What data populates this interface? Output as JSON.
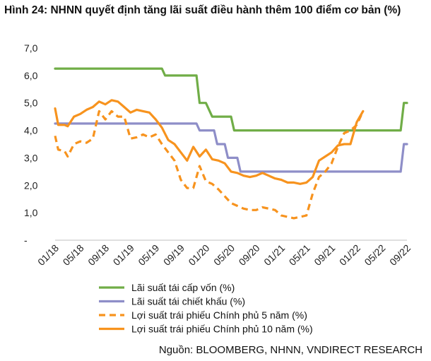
{
  "title": "Hình 24: NHNN quyết định tăng lãi suất điều hành thêm 100 điểm cơ bản (%)",
  "source": "Nguồn: BLOOMBERG, NHNN, VNDIRECT RESEARCH",
  "chart_data": {
    "type": "line",
    "title": "Hình 24: NHNN quyết định tăng lãi suất điều hành thêm 100 điểm cơ bản (%)",
    "xlabel": "",
    "ylabel": "",
    "ylim": [
      0,
      7
    ],
    "yticks": [
      0,
      1,
      2,
      3,
      4,
      5,
      6,
      7
    ],
    "ytick_labels": [
      "-",
      "1,0",
      "2,0",
      "3,0",
      "4,0",
      "5,0",
      "6,0",
      "7,0"
    ],
    "x_range": [
      0,
      56
    ],
    "xtick_labels": [
      "01/18",
      "05/18",
      "09/18",
      "01/19",
      "05/19",
      "09/19",
      "01/20",
      "05/20",
      "09/20",
      "01/21",
      "05/21",
      "09/21",
      "01/22",
      "05/22",
      "09/22"
    ],
    "xtick_positions": [
      0,
      4,
      8,
      12,
      16,
      20,
      24,
      28,
      32,
      36,
      40,
      44,
      48,
      52,
      56
    ],
    "grid": false,
    "legend_position": "bottom",
    "series": [
      {
        "name": "Lãi suất tái cấp vốn (%)",
        "color": "#70ad47",
        "style": "solid",
        "points": [
          [
            0,
            6.25
          ],
          [
            17,
            6.25
          ],
          [
            17.5,
            6.0
          ],
          [
            21,
            6.0
          ],
          [
            22.5,
            6.0
          ],
          [
            23,
            5.0
          ],
          [
            24,
            5.0
          ],
          [
            25,
            4.5
          ],
          [
            28,
            4.5
          ],
          [
            28.5,
            4.0
          ],
          [
            55,
            4.0
          ],
          [
            55.5,
            5.0
          ],
          [
            56,
            5.0
          ]
        ]
      },
      {
        "name": "Lãi suất tái chiết khấu (%)",
        "color": "#8e8ec8",
        "style": "solid",
        "points": [
          [
            0,
            4.25
          ],
          [
            22.5,
            4.25
          ],
          [
            23,
            4.0
          ],
          [
            25.3,
            4.0
          ],
          [
            25.8,
            3.5
          ],
          [
            27,
            3.5
          ],
          [
            27.5,
            3.0
          ],
          [
            29,
            3.0
          ],
          [
            29.5,
            2.5
          ],
          [
            55,
            2.5
          ],
          [
            55.5,
            3.5
          ],
          [
            56,
            3.5
          ]
        ]
      },
      {
        "name": "Lợi suất trái phiếu Chính phủ 5 năm (%)",
        "color": "#f7931e",
        "style": "dashed",
        "points": [
          [
            0,
            3.8
          ],
          [
            0.5,
            3.3
          ],
          [
            1.5,
            3.25
          ],
          [
            2,
            3.05
          ],
          [
            3,
            3.5
          ],
          [
            4,
            3.6
          ],
          [
            5,
            3.55
          ],
          [
            6,
            3.7
          ],
          [
            7,
            4.7
          ],
          [
            8,
            4.4
          ],
          [
            9,
            4.7
          ],
          [
            10,
            4.5
          ],
          [
            11,
            4.5
          ],
          [
            12,
            3.7
          ],
          [
            13,
            3.75
          ],
          [
            14,
            3.85
          ],
          [
            15,
            3.75
          ],
          [
            16,
            3.85
          ],
          [
            17,
            3.5
          ],
          [
            18,
            3.2
          ],
          [
            19,
            2.9
          ],
          [
            20,
            2.2
          ],
          [
            21,
            1.9
          ],
          [
            22,
            1.9
          ],
          [
            23,
            2.7
          ],
          [
            24,
            2.15
          ],
          [
            25,
            2.05
          ],
          [
            26,
            1.85
          ],
          [
            27,
            1.6
          ],
          [
            28,
            1.35
          ],
          [
            29,
            1.25
          ],
          [
            30,
            1.15
          ],
          [
            31,
            1.1
          ],
          [
            32,
            1.1
          ],
          [
            33,
            1.2
          ],
          [
            34,
            1.15
          ],
          [
            35,
            1.1
          ],
          [
            36,
            0.9
          ],
          [
            37,
            0.85
          ],
          [
            38,
            0.8
          ],
          [
            39,
            0.85
          ],
          [
            40,
            0.9
          ],
          [
            41,
            1.7
          ],
          [
            42,
            2.3
          ],
          [
            43,
            2.5
          ],
          [
            44,
            2.8
          ],
          [
            45,
            3.4
          ],
          [
            46,
            3.9
          ],
          [
            47,
            4.0
          ],
          [
            48,
            4.2
          ],
          [
            49,
            4.7
          ]
        ]
      },
      {
        "name": "Lợi suất trái phiếu Chính phủ 10 năm (%)",
        "color": "#f7931e",
        "style": "solid",
        "points": [
          [
            0,
            4.8
          ],
          [
            0.5,
            4.2
          ],
          [
            1.5,
            4.2
          ],
          [
            2,
            4.15
          ],
          [
            3,
            4.5
          ],
          [
            4,
            4.6
          ],
          [
            5,
            4.75
          ],
          [
            6,
            4.85
          ],
          [
            7,
            5.05
          ],
          [
            8,
            4.95
          ],
          [
            9,
            5.1
          ],
          [
            10,
            5.05
          ],
          [
            11,
            4.85
          ],
          [
            12,
            4.65
          ],
          [
            13,
            4.75
          ],
          [
            14,
            4.7
          ],
          [
            15,
            4.65
          ],
          [
            16,
            4.4
          ],
          [
            17,
            4.1
          ],
          [
            18,
            3.65
          ],
          [
            19,
            3.5
          ],
          [
            20,
            3.2
          ],
          [
            21,
            2.9
          ],
          [
            22,
            3.4
          ],
          [
            23,
            3.05
          ],
          [
            24,
            3.3
          ],
          [
            25,
            2.95
          ],
          [
            26,
            2.9
          ],
          [
            27,
            2.8
          ],
          [
            28,
            2.5
          ],
          [
            29,
            2.45
          ],
          [
            30,
            2.35
          ],
          [
            31,
            2.3
          ],
          [
            32,
            2.35
          ],
          [
            33,
            2.45
          ],
          [
            34,
            2.35
          ],
          [
            35,
            2.25
          ],
          [
            36,
            2.2
          ],
          [
            37,
            2.1
          ],
          [
            38,
            2.1
          ],
          [
            39,
            2.05
          ],
          [
            40,
            2.1
          ],
          [
            41,
            2.3
          ],
          [
            42,
            2.9
          ],
          [
            43,
            3.05
          ],
          [
            44,
            3.2
          ],
          [
            45,
            3.45
          ],
          [
            46,
            3.5
          ],
          [
            47,
            3.5
          ],
          [
            48,
            4.3
          ],
          [
            49,
            4.7
          ]
        ]
      }
    ]
  }
}
